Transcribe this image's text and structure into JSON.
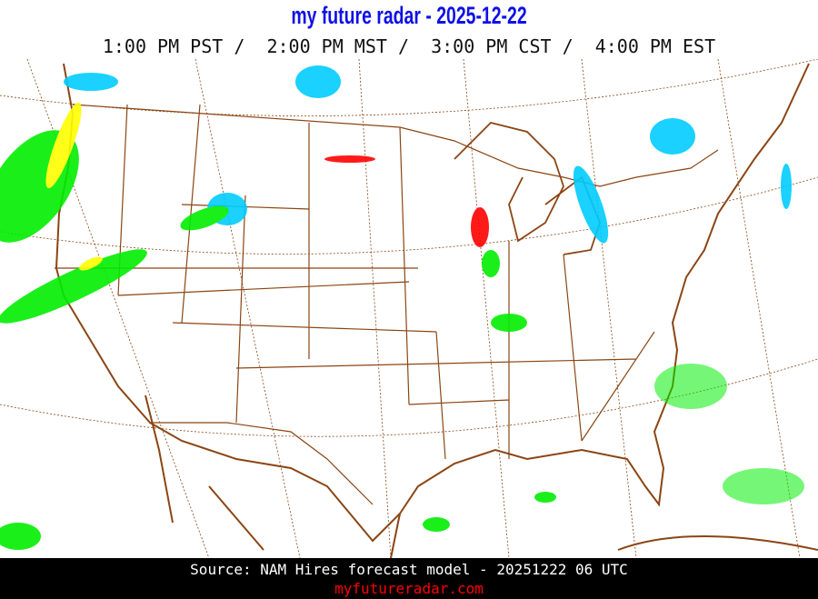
{
  "header": {
    "title": "my future radar - 2025-12-22",
    "times": "1:00 PM PST /  2:00 PM MST /  3:00 PM CST /  4:00 PM EST"
  },
  "map": {
    "region": "Continental United States",
    "border_color": "#8B4513",
    "graticule_color": "#8B4513",
    "precip_colors": {
      "rain_light": "#00ee00",
      "rain_moderate": "#ffff00",
      "snow": "#00ccff",
      "mix": "#ff0000"
    }
  },
  "footer": {
    "source": "Source: NAM Hires forecast model - 20251222 06 UTC",
    "site": "myfutureradar.com"
  }
}
